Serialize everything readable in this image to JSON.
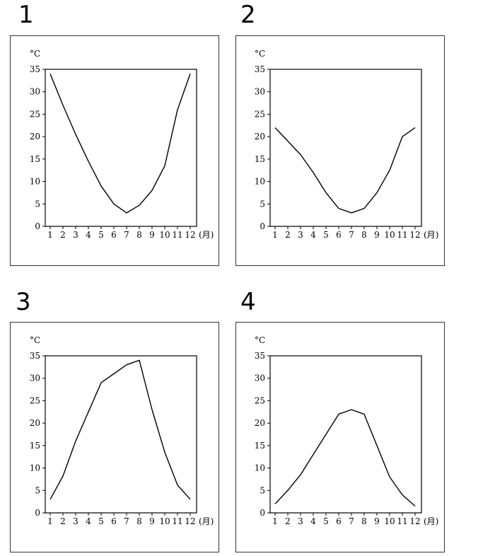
{
  "chart_data": [
    {
      "panel": "1",
      "type": "line",
      "unit": "°C",
      "x": [
        "1",
        "2",
        "3",
        "4",
        "5",
        "6",
        "7",
        "8",
        "9",
        "10",
        "11",
        "12"
      ],
      "x_suffix": "(月)",
      "yticks": [
        0,
        5,
        10,
        15,
        20,
        25,
        30,
        35
      ],
      "ylim": [
        0,
        35
      ],
      "values": [
        34,
        27,
        20.5,
        14.5,
        9,
        5,
        3,
        4.7,
        8,
        13.5,
        26,
        34
      ],
      "grid": false
    },
    {
      "panel": "2",
      "type": "line",
      "unit": "°C",
      "x": [
        "1",
        "2",
        "3",
        "4",
        "5",
        "6",
        "7",
        "8",
        "9",
        "10",
        "11",
        "12"
      ],
      "x_suffix": "(月)",
      "yticks": [
        0,
        5,
        10,
        15,
        20,
        25,
        30,
        35
      ],
      "ylim": [
        0,
        35
      ],
      "values": [
        22,
        19,
        16,
        12,
        7.5,
        4,
        3,
        4,
        7.5,
        12.5,
        20,
        22
      ],
      "grid": false
    },
    {
      "panel": "3",
      "type": "line",
      "unit": "°C",
      "x": [
        "1",
        "2",
        "3",
        "4",
        "5",
        "6",
        "7",
        "8",
        "9",
        "10",
        "11",
        "12"
      ],
      "x_suffix": "(月)",
      "yticks": [
        0,
        5,
        10,
        15,
        20,
        25,
        30,
        35
      ],
      "ylim": [
        0,
        35
      ],
      "values": [
        3,
        8.2,
        16,
        22.5,
        29,
        31,
        33,
        34,
        23,
        13.5,
        6.2,
        3
      ],
      "grid": false
    },
    {
      "panel": "4",
      "type": "line",
      "unit": "°C",
      "x": [
        "1",
        "2",
        "3",
        "4",
        "5",
        "6",
        "7",
        "8",
        "9",
        "10",
        "11",
        "12"
      ],
      "x_suffix": "(月)",
      "yticks": [
        0,
        5,
        10,
        15,
        20,
        25,
        30,
        35
      ],
      "ylim": [
        0,
        35
      ],
      "values": [
        2,
        5,
        8.5,
        13,
        17.5,
        22,
        23,
        22,
        15,
        8,
        4,
        1.5
      ],
      "grid": false
    }
  ]
}
